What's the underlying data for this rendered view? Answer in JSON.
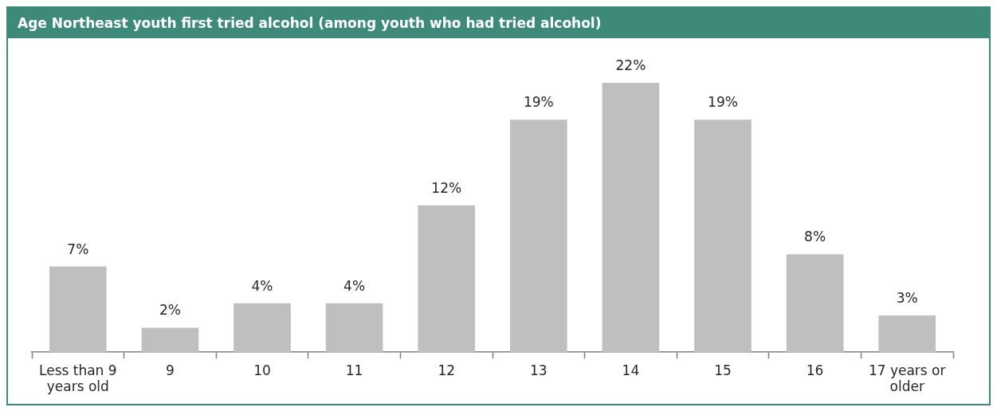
{
  "chart_data": {
    "type": "bar",
    "title": "Age Northeast youth first tried alcohol (among youth who had tried alcohol)",
    "categories": [
      "Less than 9 years old",
      "9",
      "10",
      "11",
      "12",
      "13",
      "14",
      "15",
      "16",
      "17 years or older"
    ],
    "values": [
      7,
      2,
      4,
      4,
      12,
      19,
      22,
      19,
      8,
      3
    ],
    "value_labels": [
      "7%",
      "2%",
      "4%",
      "4%",
      "12%",
      "19%",
      "22%",
      "19%",
      "8%",
      "3%"
    ],
    "color": "#bfbfbf",
    "grid": false,
    "legend": false,
    "tick_labels": "x"
  }
}
